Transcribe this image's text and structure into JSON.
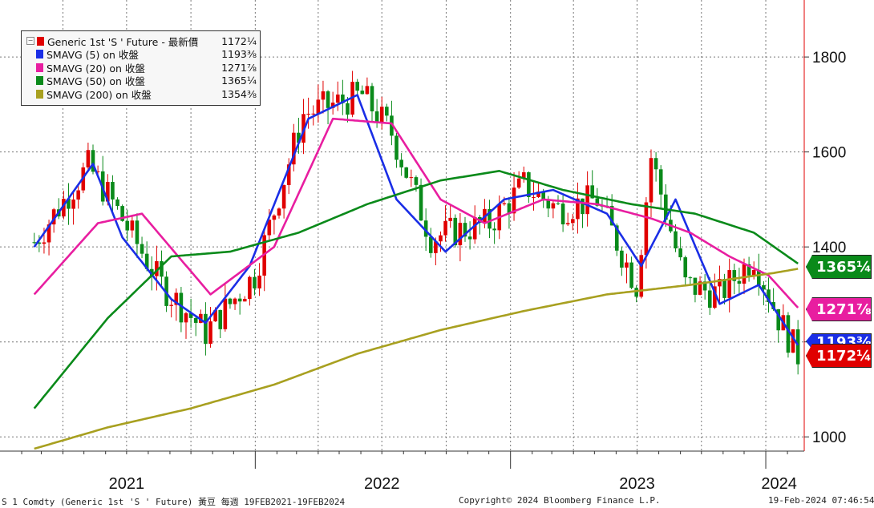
{
  "chart_data": {
    "type": "line",
    "title": "",
    "ylim": [
      970,
      1920
    ],
    "y_ticks": [
      1000,
      1200,
      1400,
      1600,
      1800
    ],
    "y_tick_labels": [
      "1000",
      "1200",
      "1400",
      "1600",
      "1800"
    ],
    "x_year_labels": [
      "2021",
      "2022",
      "2023",
      "2024"
    ],
    "grid": true,
    "legend_placement": "top-left",
    "series": [
      {
        "name": "Generic 1st 'S ' Future - 最新價",
        "color": "#e00000",
        "last_label": "1172¼",
        "x": [
          "2021-02-19",
          "2021-05-07",
          "2021-06-04",
          "2021-08-20",
          "2021-10-22",
          "2021-12-31",
          "2022-03-11",
          "2022-06-03",
          "2022-07-15",
          "2022-09-09",
          "2022-12-02",
          "2023-01-20",
          "2023-03-10",
          "2023-05-05",
          "2023-06-30",
          "2023-07-21",
          "2023-09-08",
          "2023-10-27",
          "2023-12-15",
          "2024-01-19",
          "2024-02-16"
        ],
        "y": [
          1410,
          1570,
          1510,
          1320,
          1220,
          1340,
          1680,
          1720,
          1640,
          1420,
          1450,
          1530,
          1480,
          1500,
          1320,
          1590,
          1320,
          1300,
          1380,
          1250,
          1172
        ]
      },
      {
        "name": "SMAVG (5)  on 收盤",
        "color": "#1a2ee6",
        "last_label": "1193⅜",
        "x": [
          "2021-02-19",
          "2021-05-14",
          "2021-06-25",
          "2021-09-03",
          "2021-10-22",
          "2021-12-24",
          "2022-03-18",
          "2022-05-27",
          "2022-07-22",
          "2022-09-30",
          "2022-12-23",
          "2023-03-03",
          "2023-05-19",
          "2023-07-07",
          "2023-08-25",
          "2023-10-27",
          "2023-12-22",
          "2024-02-16"
        ],
        "y": [
          1400,
          1575,
          1420,
          1290,
          1240,
          1360,
          1670,
          1720,
          1500,
          1390,
          1500,
          1520,
          1470,
          1360,
          1500,
          1280,
          1320,
          1193
        ]
      },
      {
        "name": "SMAVG (20)  on 收盤",
        "color": "#e81ea0",
        "last_label": "1271⅞",
        "x": [
          "2021-02-19",
          "2021-05-21",
          "2021-07-23",
          "2021-10-29",
          "2022-01-28",
          "2022-04-22",
          "2022-07-15",
          "2022-09-23",
          "2022-11-25",
          "2023-02-17",
          "2023-05-05",
          "2023-07-21",
          "2023-09-15",
          "2023-11-10",
          "2024-01-05",
          "2024-02-16"
        ],
        "y": [
          1300,
          1450,
          1470,
          1300,
          1400,
          1670,
          1660,
          1500,
          1450,
          1500,
          1490,
          1460,
          1430,
          1380,
          1340,
          1272
        ]
      },
      {
        "name": "SMAVG (50)  on 收盤",
        "color": "#0a8a1a",
        "last_label": "1365¼",
        "x": [
          "2021-02-19",
          "2021-06-04",
          "2021-09-03",
          "2021-11-26",
          "2022-03-04",
          "2022-06-10",
          "2022-09-23",
          "2022-12-16",
          "2023-03-17",
          "2023-06-23",
          "2023-09-22",
          "2023-12-15",
          "2024-02-16"
        ],
        "y": [
          1060,
          1250,
          1380,
          1390,
          1430,
          1490,
          1540,
          1560,
          1520,
          1490,
          1470,
          1430,
          1365
        ]
      },
      {
        "name": "SMAVG (200)  on 收盤",
        "color": "#a8a020",
        "last_label": "1354⅜",
        "x": [
          "2021-02-19",
          "2021-06-04",
          "2021-10-01",
          "2022-01-28",
          "2022-05-27",
          "2022-09-23",
          "2023-01-20",
          "2023-05-19",
          "2023-09-15",
          "2024-01-12",
          "2024-02-16"
        ],
        "y": [
          975,
          1020,
          1060,
          1110,
          1175,
          1225,
          1265,
          1300,
          1320,
          1345,
          1354
        ]
      }
    ]
  },
  "legend": {
    "toggle": "−",
    "items": [
      {
        "label": "Generic 1st 'S ' Future - 最新價",
        "value": "1172¼",
        "color": "#e00000"
      },
      {
        "label": "SMAVG (5)  on 收盤",
        "value": "1193⅜",
        "color": "#1a2ee6"
      },
      {
        "label": "SMAVG (20)  on 收盤",
        "value": "1271⅞",
        "color": "#e81ea0"
      },
      {
        "label": "SMAVG (50)  on 收盤",
        "value": "1365¼",
        "color": "#0a8a1a"
      },
      {
        "label": "SMAVG (200)  on 收盤",
        "value": "1354⅜",
        "color": "#a8a020"
      }
    ]
  },
  "tags": {
    "sma50": {
      "text": "1365¼",
      "color": "#0a8a1a"
    },
    "sma20": {
      "text": "1271⅞",
      "color": "#e81ea0"
    },
    "sma5": {
      "text": "1193⅜",
      "color": "#1a2ee6"
    },
    "last": {
      "text": "1172¼",
      "color": "#e00000"
    }
  },
  "footer": {
    "left": "S 1 Comdty (Generic 1st 'S ' Future) 黃豆  每週 19FEB2021-19FEB2024",
    "center": "Copyright© 2024 Bloomberg Finance L.P.",
    "right": "19-Feb-2024 07:46:54"
  }
}
